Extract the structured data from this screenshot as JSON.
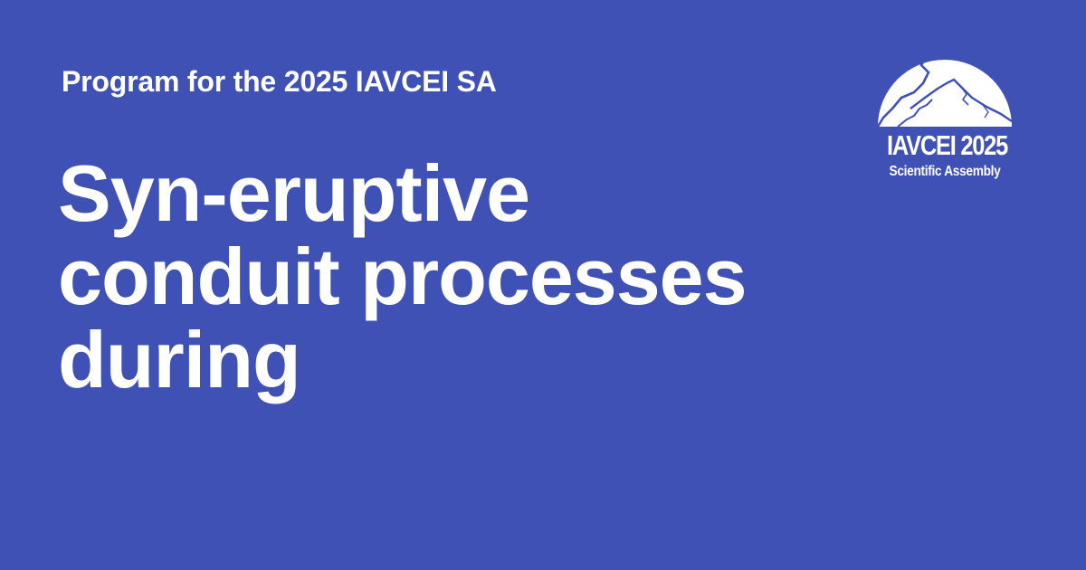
{
  "colors": {
    "background": "#3f51b5",
    "text": "#ffffff",
    "logo_mountain_edge": "#3f51b5"
  },
  "header": {
    "label": "Program for the 2025 IAVCEI SA"
  },
  "main": {
    "title_lines": [
      "Syn-eruptive",
      "conduit processes",
      "during"
    ]
  },
  "logo": {
    "icon": "volcano-dome-icon",
    "title": "IAVCEI 2025",
    "subtitle": "Scientific Assembly"
  }
}
